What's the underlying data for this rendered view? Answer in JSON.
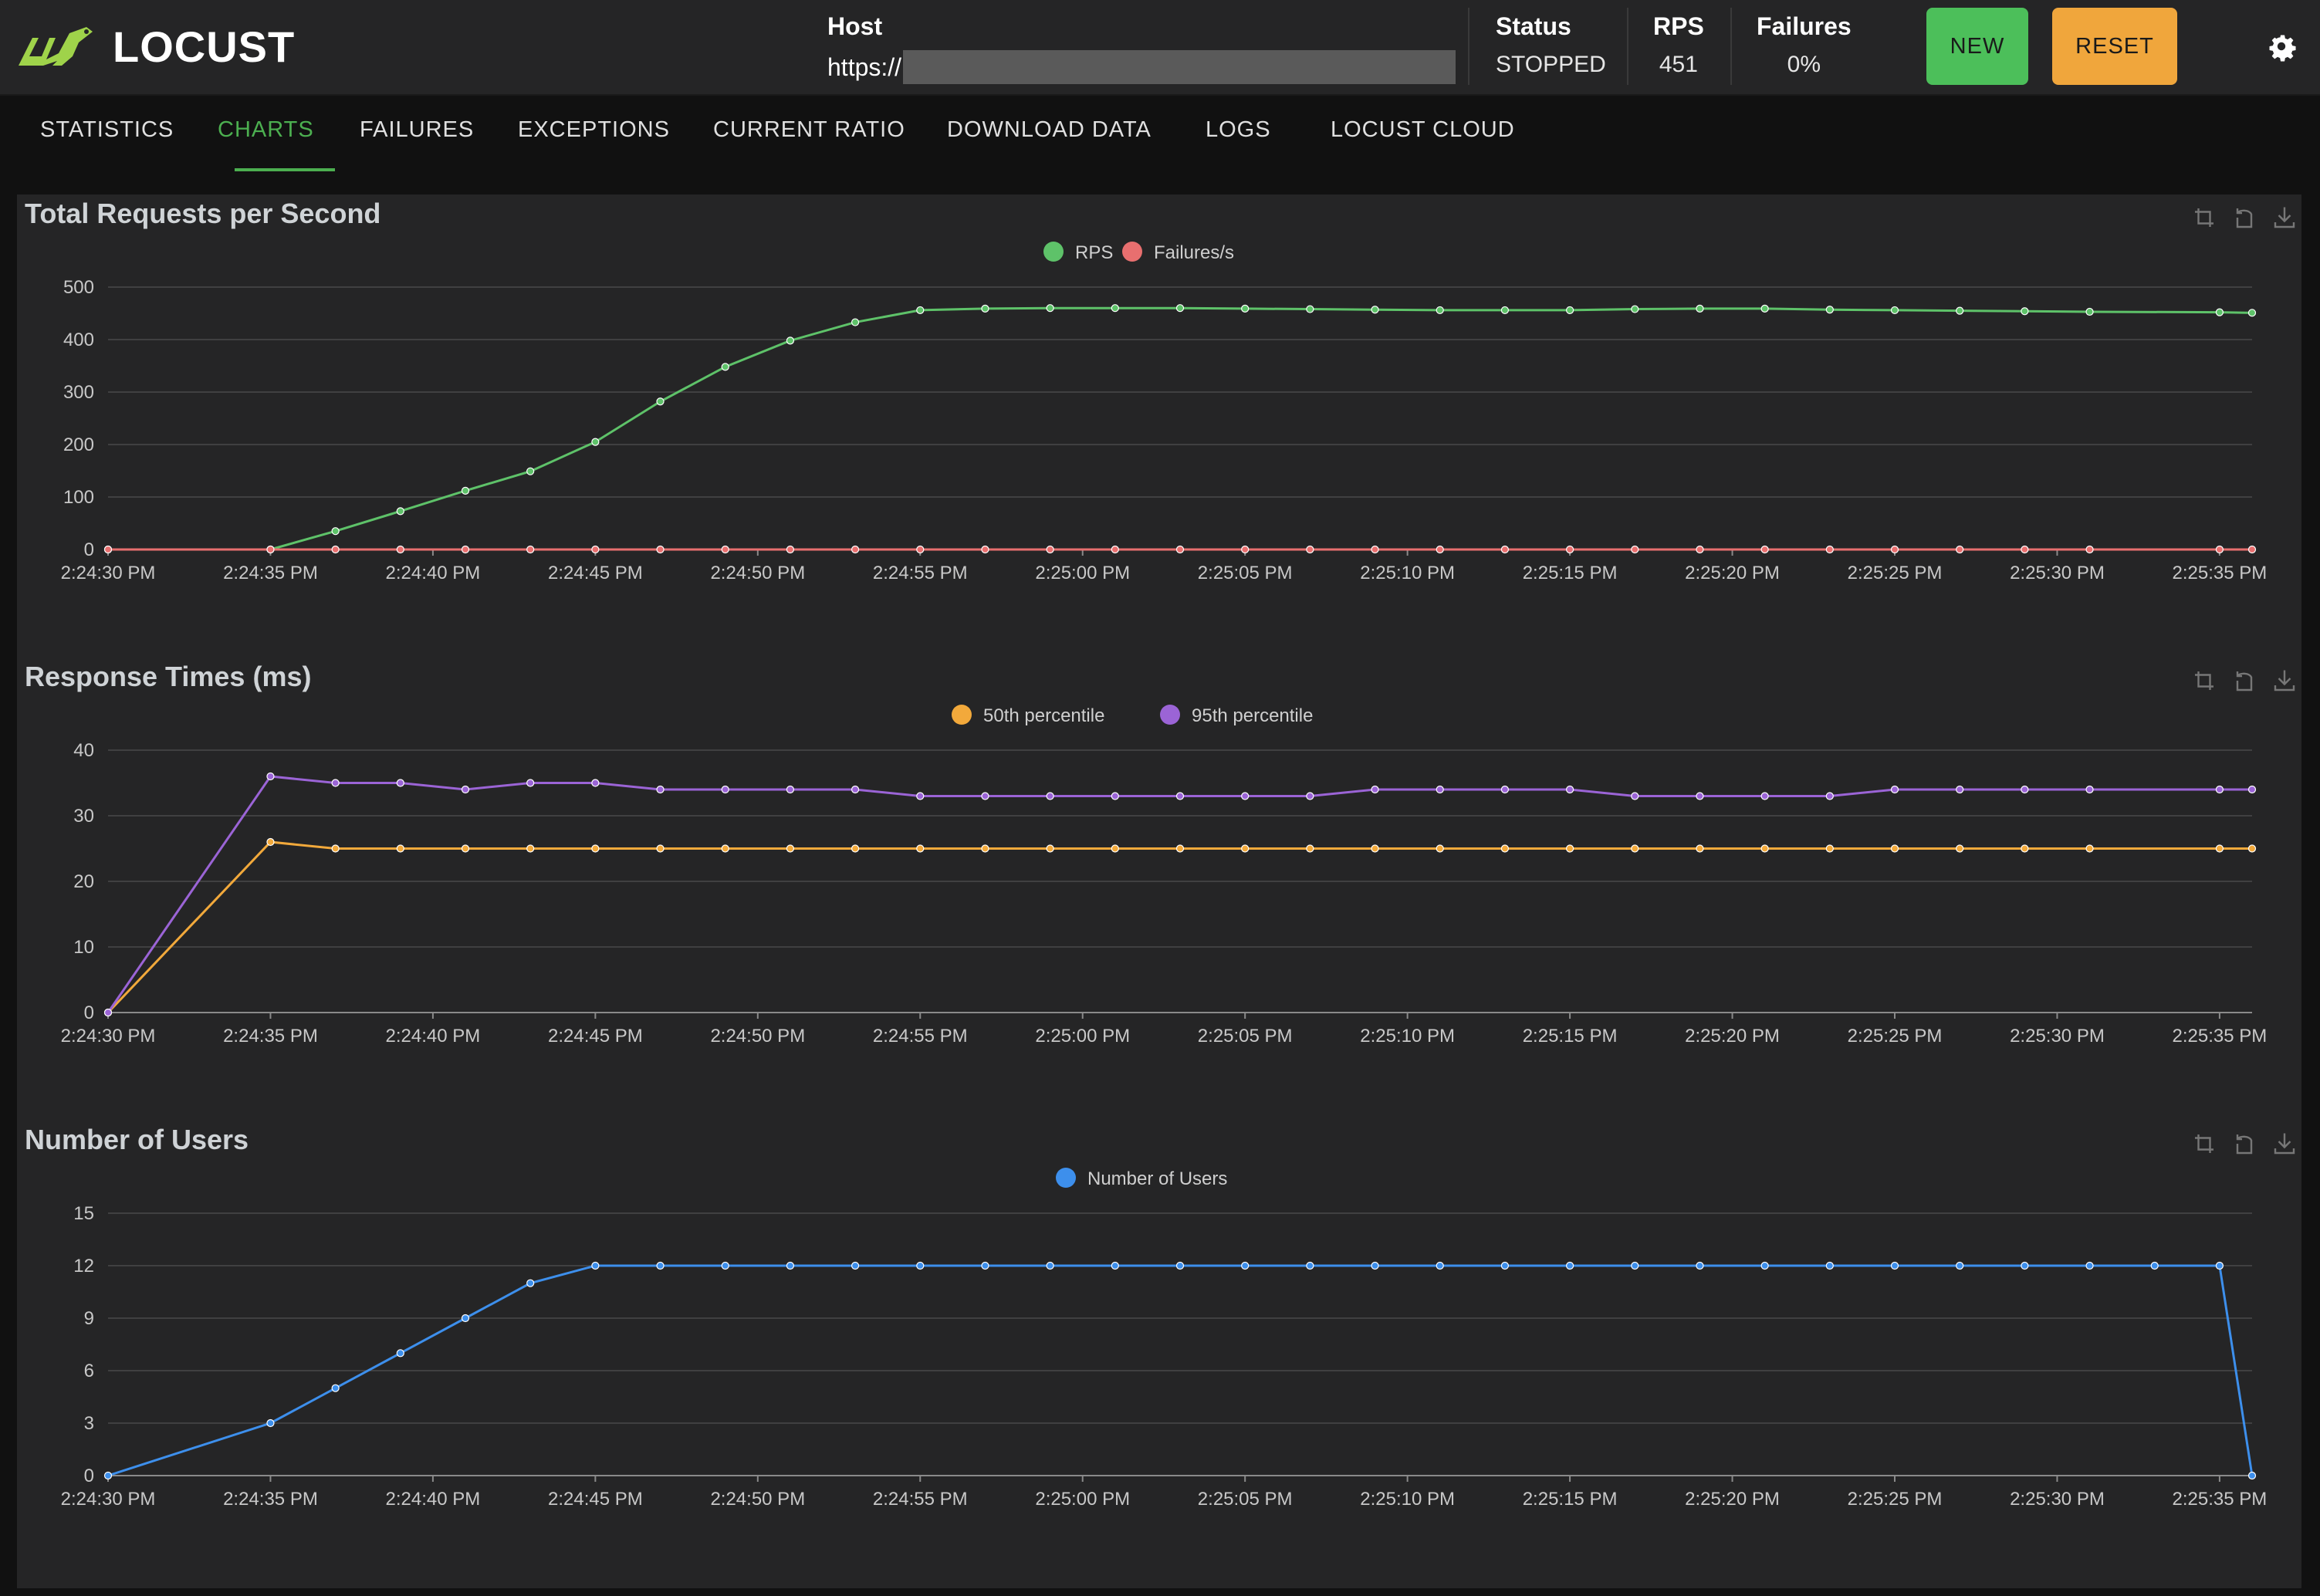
{
  "app": {
    "name": "LOCUST"
  },
  "header": {
    "host_label": "Host",
    "host_value": "https://",
    "status_label": "Status",
    "status_value": "STOPPED",
    "rps_label": "RPS",
    "rps_value": "451",
    "failures_label": "Failures",
    "failures_value": "0%",
    "new_button": "NEW",
    "reset_button": "RESET"
  },
  "tabs": [
    {
      "label": "STATISTICS",
      "active": false
    },
    {
      "label": "CHARTS",
      "active": true
    },
    {
      "label": "FAILURES",
      "active": false
    },
    {
      "label": "EXCEPTIONS",
      "active": false
    },
    {
      "label": "CURRENT RATIO",
      "active": false
    },
    {
      "label": "DOWNLOAD DATA",
      "active": false
    },
    {
      "label": "LOGS",
      "active": false
    },
    {
      "label": "LOCUST CLOUD",
      "active": false
    }
  ],
  "colors": {
    "accent": "#4caf50",
    "rps": "#5ec269",
    "failures": "#e86f6f",
    "p50": "#f2a93b",
    "p95": "#9b64d6",
    "users": "#3d8fec"
  },
  "chart_data": [
    {
      "type": "line",
      "title": "Total Requests per Second",
      "x_ticks": [
        "2:24:30 PM",
        "2:24:35 PM",
        "2:24:40 PM",
        "2:24:45 PM",
        "2:24:50 PM",
        "2:24:55 PM",
        "2:25:00 PM",
        "2:25:05 PM",
        "2:25:10 PM",
        "2:25:15 PM",
        "2:25:20 PM",
        "2:25:25 PM",
        "2:25:30 PM",
        "2:25:35 PM"
      ],
      "x_seconds": [
        0,
        5,
        7,
        9,
        11,
        13,
        15,
        17,
        19,
        21,
        23,
        25,
        27,
        29,
        31,
        33,
        35,
        37,
        39,
        41,
        43,
        45,
        47,
        49,
        51,
        53,
        55,
        57,
        59,
        61,
        63,
        65,
        66
      ],
      "ylim": [
        0,
        500
      ],
      "y_ticks": [
        0,
        100,
        200,
        300,
        400,
        500
      ],
      "series": [
        {
          "name": "RPS",
          "color": "#5ec269",
          "values": [
            0,
            0,
            35,
            73,
            112,
            149,
            205,
            282,
            348,
            398,
            433,
            456,
            459,
            460,
            460,
            460,
            459,
            458,
            457,
            456,
            456,
            456,
            458,
            459,
            459,
            457,
            456,
            455,
            454,
            453,
            null,
            452,
            451
          ]
        },
        {
          "name": "Failures/s",
          "color": "#e86f6f",
          "values": [
            0,
            0,
            0,
            0,
            0,
            0,
            0,
            0,
            0,
            0,
            0,
            0,
            0,
            0,
            0,
            0,
            0,
            0,
            0,
            0,
            0,
            0,
            0,
            0,
            0,
            0,
            0,
            0,
            0,
            0,
            null,
            0,
            0
          ]
        }
      ]
    },
    {
      "type": "line",
      "title": "Response Times (ms)",
      "x_ticks": [
        "2:24:30 PM",
        "2:24:35 PM",
        "2:24:40 PM",
        "2:24:45 PM",
        "2:24:50 PM",
        "2:24:55 PM",
        "2:25:00 PM",
        "2:25:05 PM",
        "2:25:10 PM",
        "2:25:15 PM",
        "2:25:20 PM",
        "2:25:25 PM",
        "2:25:30 PM",
        "2:25:35 PM"
      ],
      "x_seconds": [
        0,
        5,
        7,
        9,
        11,
        13,
        15,
        17,
        19,
        21,
        23,
        25,
        27,
        29,
        31,
        33,
        35,
        37,
        39,
        41,
        43,
        45,
        47,
        49,
        51,
        53,
        55,
        57,
        59,
        61,
        63,
        65,
        66
      ],
      "ylim": [
        0,
        40
      ],
      "y_ticks": [
        0,
        10,
        20,
        30,
        40
      ],
      "series": [
        {
          "name": "50th percentile",
          "color": "#f2a93b",
          "values": [
            0,
            26,
            25,
            25,
            25,
            25,
            25,
            25,
            25,
            25,
            25,
            25,
            25,
            25,
            25,
            25,
            25,
            25,
            25,
            25,
            25,
            25,
            25,
            25,
            25,
            25,
            25,
            25,
            25,
            25,
            null,
            25,
            25
          ]
        },
        {
          "name": "95th percentile",
          "color": "#9b64d6",
          "values": [
            0,
            36,
            35,
            35,
            34,
            35,
            35,
            34,
            34,
            34,
            34,
            33,
            33,
            33,
            33,
            33,
            33,
            33,
            34,
            34,
            34,
            34,
            33,
            33,
            33,
            33,
            34,
            34,
            34,
            34,
            null,
            34,
            34
          ]
        }
      ]
    },
    {
      "type": "line",
      "title": "Number of Users",
      "x_ticks": [
        "2:24:30 PM",
        "2:24:35 PM",
        "2:24:40 PM",
        "2:24:45 PM",
        "2:24:50 PM",
        "2:24:55 PM",
        "2:25:00 PM",
        "2:25:05 PM",
        "2:25:10 PM",
        "2:25:15 PM",
        "2:25:20 PM",
        "2:25:25 PM",
        "2:25:30 PM",
        "2:25:35 PM"
      ],
      "x_seconds": [
        0,
        5,
        7,
        9,
        11,
        13,
        15,
        17,
        19,
        21,
        23,
        25,
        27,
        29,
        31,
        33,
        35,
        37,
        39,
        41,
        43,
        45,
        47,
        49,
        51,
        53,
        55,
        57,
        59,
        61,
        63,
        65,
        66
      ],
      "ylim": [
        0,
        15
      ],
      "y_ticks": [
        0,
        3,
        6,
        9,
        12,
        15
      ],
      "series": [
        {
          "name": "Number of Users",
          "color": "#3d8fec",
          "values": [
            0,
            3,
            5,
            7,
            9,
            11,
            12,
            12,
            12,
            12,
            12,
            12,
            12,
            12,
            12,
            12,
            12,
            12,
            12,
            12,
            12,
            12,
            12,
            12,
            12,
            12,
            12,
            12,
            12,
            12,
            12,
            12,
            0
          ]
        }
      ]
    }
  ]
}
